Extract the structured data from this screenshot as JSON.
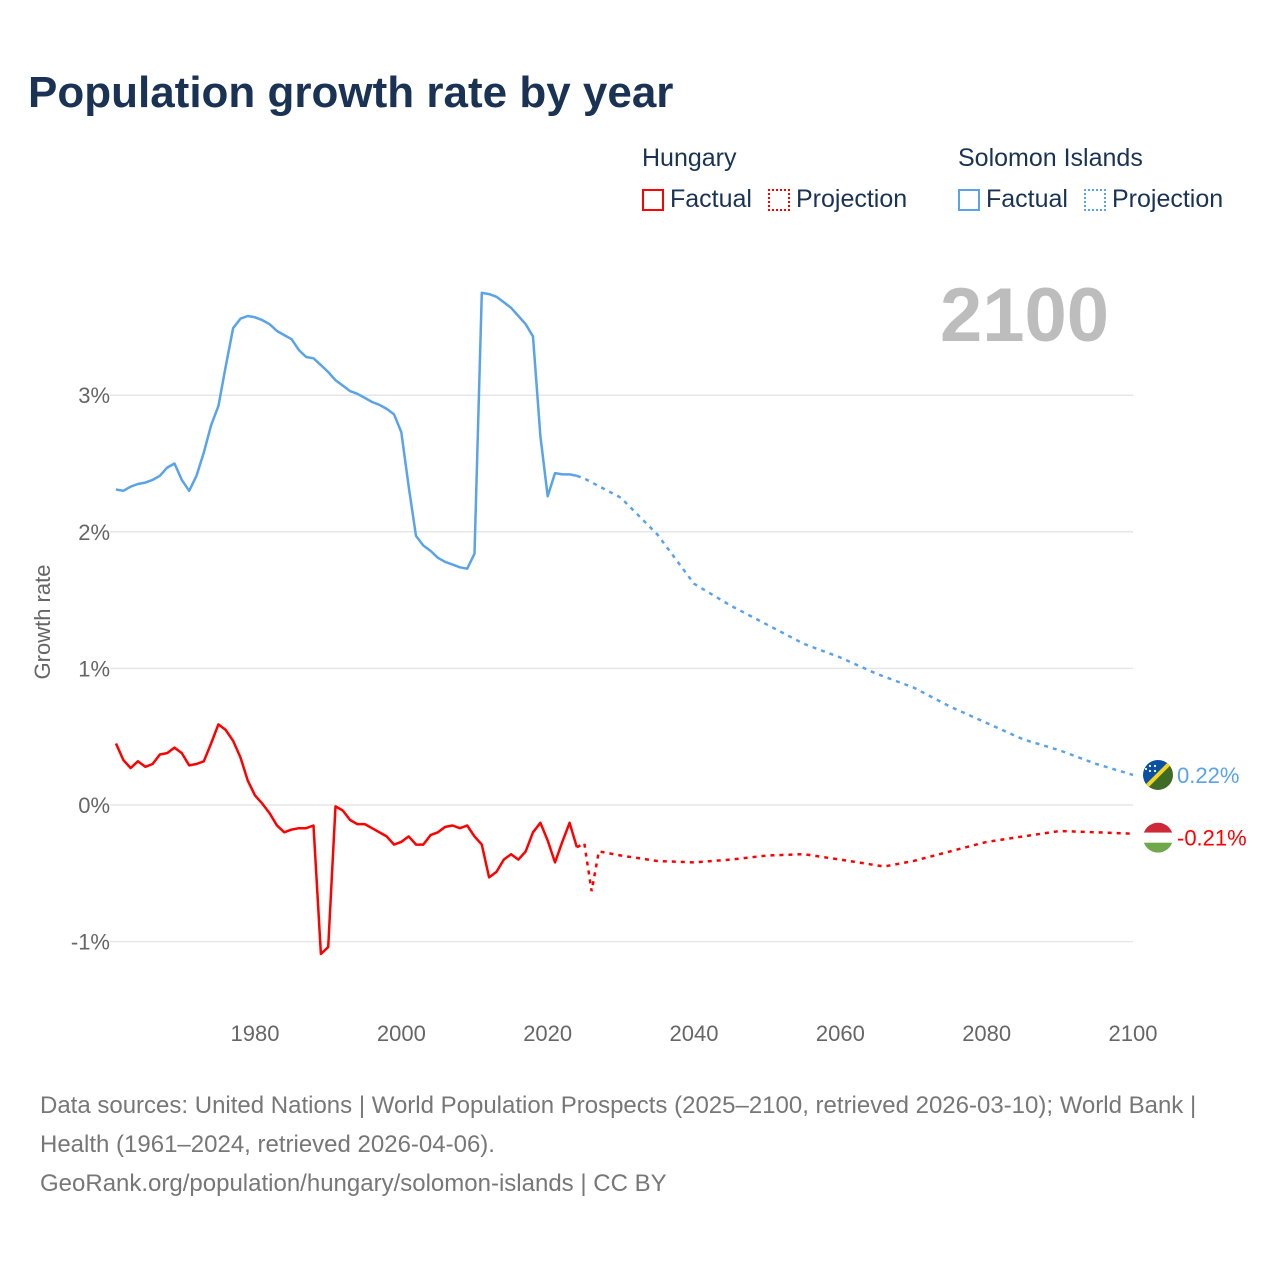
{
  "title": "Population growth rate by year",
  "year_label": "2100",
  "legend": {
    "groups": [
      {
        "name": "Hungary",
        "color": "#ff0000",
        "factual": "Factual",
        "projection": "Projection"
      },
      {
        "name": "Solomon Islands",
        "color": "#5aa3e8",
        "factual": "Factual",
        "projection": "Projection"
      }
    ]
  },
  "footer": {
    "sources": "Data sources: United Nations | World Population Prospects (2025–2100, retrieved 2026-03-10); World Bank | Health (1961–2024, retrieved 2026-04-06).",
    "credit": "GeoRank.org/population/hungary/solomon-islands | CC BY"
  },
  "chart_data": {
    "type": "line",
    "title": "Population growth rate by year",
    "xlabel": "",
    "ylabel": "Growth rate",
    "xlim": [
      1961,
      2100
    ],
    "ylim": [
      -1.4,
      3.9
    ],
    "x_ticks": [
      1980,
      2000,
      2020,
      2040,
      2060,
      2080,
      2100
    ],
    "x_tick_labels": [
      "1980",
      "2000",
      "2020",
      "2040",
      "2060",
      "2080",
      "2100"
    ],
    "y_ticks": [
      -1,
      0,
      1,
      2,
      3
    ],
    "y_tick_labels": [
      "-1%",
      "0%",
      "1%",
      "2%",
      "3%"
    ],
    "grid": true,
    "series": [
      {
        "name": "Solomon Islands",
        "color": "#5aa3e8",
        "end_label": "0.22%",
        "factual": {
          "x": [
            1961,
            1962,
            1963,
            1964,
            1965,
            1966,
            1967,
            1968,
            1969,
            1970,
            1971,
            1972,
            1973,
            1974,
            1975,
            1976,
            1977,
            1978,
            1979,
            1980,
            1981,
            1982,
            1983,
            1984,
            1985,
            1986,
            1987,
            1988,
            1989,
            1990,
            1991,
            1992,
            1993,
            1994,
            1995,
            1996,
            1997,
            1998,
            1999,
            2000,
            2001,
            2002,
            2003,
            2004,
            2005,
            2006,
            2007,
            2008,
            2009,
            2010,
            2011,
            2012,
            2013,
            2014,
            2015,
            2016,
            2017,
            2018,
            2019,
            2020,
            2021,
            2022,
            2023,
            2024
          ],
          "y": [
            2.31,
            2.3,
            2.33,
            2.35,
            2.36,
            2.38,
            2.41,
            2.47,
            2.5,
            2.38,
            2.3,
            2.41,
            2.58,
            2.78,
            2.92,
            3.21,
            3.49,
            3.56,
            3.58,
            3.57,
            3.55,
            3.52,
            3.47,
            3.44,
            3.41,
            3.33,
            3.28,
            3.27,
            3.22,
            3.17,
            3.11,
            3.07,
            3.03,
            3.01,
            2.98,
            2.95,
            2.93,
            2.9,
            2.86,
            2.73,
            2.33,
            1.97,
            1.9,
            1.86,
            1.81,
            1.78,
            1.76,
            1.74,
            1.73,
            1.84,
            3.75,
            3.74,
            3.72,
            3.68,
            3.64,
            3.58,
            3.52,
            3.43,
            2.7,
            2.26,
            2.43,
            2.42,
            2.42,
            2.41
          ]
        },
        "projection": {
          "x": [
            2024,
            2025,
            2030,
            2035,
            2040,
            2045,
            2050,
            2055,
            2060,
            2065,
            2070,
            2075,
            2080,
            2085,
            2090,
            2095,
            2100
          ],
          "y": [
            2.41,
            2.39,
            2.25,
            1.98,
            1.62,
            1.46,
            1.32,
            1.18,
            1.08,
            0.96,
            0.86,
            0.72,
            0.6,
            0.48,
            0.4,
            0.3,
            0.22
          ]
        }
      },
      {
        "name": "Hungary",
        "color": "#ff0000",
        "end_label": "-0.21%",
        "factual": {
          "x": [
            1961,
            1962,
            1963,
            1964,
            1965,
            1966,
            1967,
            1968,
            1969,
            1970,
            1971,
            1972,
            1973,
            1974,
            1975,
            1976,
            1977,
            1978,
            1979,
            1980,
            1981,
            1982,
            1983,
            1984,
            1985,
            1986,
            1987,
            1988,
            1989,
            1990,
            1991,
            1992,
            1993,
            1994,
            1995,
            1996,
            1997,
            1998,
            1999,
            2000,
            2001,
            2002,
            2003,
            2004,
            2005,
            2006,
            2007,
            2008,
            2009,
            2010,
            2011,
            2012,
            2013,
            2014,
            2015,
            2016,
            2017,
            2018,
            2019,
            2020,
            2021,
            2022,
            2023,
            2024
          ],
          "y": [
            0.45,
            0.33,
            0.27,
            0.32,
            0.28,
            0.3,
            0.37,
            0.38,
            0.42,
            0.38,
            0.29,
            0.3,
            0.32,
            0.45,
            0.59,
            0.55,
            0.47,
            0.35,
            0.18,
            0.07,
            0.01,
            -0.06,
            -0.15,
            -0.2,
            -0.18,
            -0.17,
            -0.17,
            -0.15,
            -1.09,
            -1.04,
            -0.01,
            -0.04,
            -0.11,
            -0.14,
            -0.14,
            -0.17,
            -0.2,
            -0.23,
            -0.29,
            -0.27,
            -0.23,
            -0.29,
            -0.29,
            -0.22,
            -0.2,
            -0.16,
            -0.15,
            -0.17,
            -0.15,
            -0.23,
            -0.29,
            -0.53,
            -0.49,
            -0.4,
            -0.36,
            -0.4,
            -0.34,
            -0.2,
            -0.13,
            -0.26,
            -0.42,
            -0.27,
            -0.13,
            -0.31
          ]
        },
        "projection": {
          "x": [
            2024,
            2025,
            2026,
            2027,
            2030,
            2035,
            2040,
            2045,
            2050,
            2055,
            2060,
            2066,
            2070,
            2075,
            2080,
            2085,
            2090,
            2095,
            2100
          ],
          "y": [
            -0.31,
            -0.28,
            -0.63,
            -0.34,
            -0.37,
            -0.41,
            -0.42,
            -0.4,
            -0.37,
            -0.36,
            -0.4,
            -0.45,
            -0.41,
            -0.34,
            -0.27,
            -0.23,
            -0.19,
            -0.2,
            -0.21
          ]
        }
      }
    ]
  }
}
